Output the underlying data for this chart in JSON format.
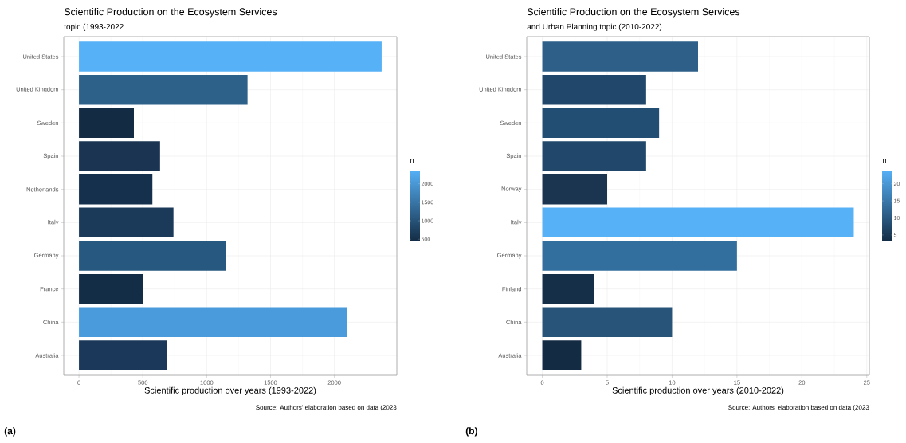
{
  "chart_data": [
    {
      "type": "bar",
      "orientation": "horizontal",
      "title": "Scientific Production on the Ecosystem Services",
      "subtitle": "topic (1993-2022",
      "xlabel": "Scientific production over years (1993-2022)",
      "clabel": "n",
      "categories": [
        "United States",
        "United Kingdom",
        "Sweden",
        "Spain",
        "Netherlands",
        "Italy",
        "Germany",
        "France",
        "China",
        "Australia"
      ],
      "values": [
        2370,
        1320,
        430,
        635,
        575,
        740,
        1150,
        500,
        2100,
        690
      ],
      "colors": [
        "#56B1F7",
        "#2D6189",
        "#132B43",
        "#1A3452",
        "#15304C",
        "#1B3A5A",
        "#27587F",
        "#142D47",
        "#4A9BDC",
        "#1B3759"
      ],
      "xlim": [
        -119,
        2489
      ],
      "xticks": [
        0,
        500,
        1000,
        1500,
        2000
      ],
      "clim": [
        430,
        2370
      ],
      "cticks": [
        500,
        1000,
        1500,
        2000
      ],
      "grid": true,
      "annotations": [
        "Source: Authors' elaboration based on data (2023",
        "(a)"
      ]
    },
    {
      "type": "bar",
      "orientation": "horizontal",
      "title": "Scientific Production on the Ecosystem Services",
      "subtitle": "and Urban Planning topic (2010-2022)",
      "xlabel": "Scientific production over years (2010-2022)",
      "clabel": "n",
      "categories": [
        "United States",
        "United Kingdom",
        "Sweden",
        "Spain",
        "Norway",
        "Italy",
        "Germany",
        "Finland",
        "China",
        "Australia"
      ],
      "values": [
        12,
        8,
        9,
        8,
        5,
        24,
        15,
        4,
        10,
        3
      ],
      "colors": [
        "#2D5F88",
        "#21486A",
        "#234E73",
        "#21486A",
        "#1B3550",
        "#56B1F7",
        "#336F9E",
        "#152F49",
        "#28547A",
        "#132B43"
      ],
      "xlim": [
        -1.2,
        25.2
      ],
      "xticks": [
        0,
        5,
        10,
        15,
        20,
        25
      ],
      "clim": [
        3,
        24
      ],
      "cticks": [
        5,
        10,
        15,
        20
      ],
      "grid": true,
      "annotations": [
        "Source: Authors' elaboration based on data (2023",
        "(b)"
      ]
    }
  ]
}
